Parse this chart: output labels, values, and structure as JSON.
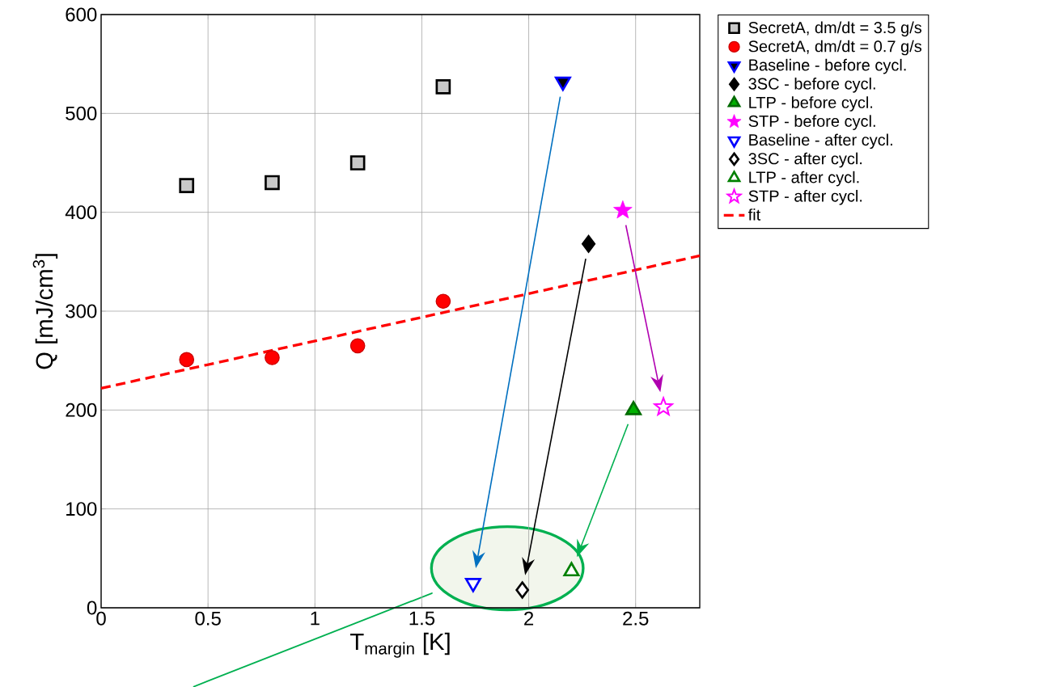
{
  "chart_data": {
    "type": "scatter",
    "xlabel": "T$_{margin}$ [K]",
    "ylabel": "Q [mJ/cm$^{3}$]",
    "xlim": [
      0,
      2.8
    ],
    "ylim": [
      0,
      600
    ],
    "xticks": [
      0,
      0.5,
      1,
      1.5,
      2,
      2.5
    ],
    "yticks": [
      0,
      100,
      200,
      300,
      400,
      500,
      600
    ],
    "grid": true,
    "legend": "top right",
    "series": [
      {
        "name": "SecretA, dm/dt = 3.5 g/s",
        "color": "#c8c8c8",
        "marker": "square",
        "x": [
          0.4,
          0.8,
          1.2,
          1.6
        ],
        "values": [
          427,
          430,
          450,
          527
        ]
      },
      {
        "name": "SecretA, dm/dt = 0.7 g/s",
        "color": "#ff0000",
        "marker": "circle",
        "x": [
          0.4,
          0.8,
          1.2,
          1.6
        ],
        "values": [
          251,
          253,
          265,
          310
        ]
      },
      {
        "name": "Baseline - before cycl.",
        "color": "#000000",
        "marker": "triangle-down-dark",
        "x": [
          2.16
        ],
        "values": [
          532
        ]
      },
      {
        "name": "3SC - before cycl.",
        "color": "#000000",
        "marker": "diamond",
        "x": [
          2.28
        ],
        "values": [
          368
        ]
      },
      {
        "name": "LTP - before cycl.",
        "color": "#00b000",
        "marker": "triangle",
        "x": [
          2.49
        ],
        "values": [
          200
        ]
      },
      {
        "name": "STP - before cycl.",
        "color": "#ff00ff",
        "marker": "star",
        "x": [
          2.44
        ],
        "values": [
          402
        ]
      },
      {
        "name": "Baseline - after cycl.",
        "color": "#0000ff",
        "marker": "triangle-down-open",
        "x": [
          1.74
        ],
        "values": [
          25
        ]
      },
      {
        "name": "3SC - after cycl.",
        "color": "#000000",
        "marker": "diamond-open",
        "x": [
          1.97
        ],
        "values": [
          18
        ]
      },
      {
        "name": "LTP - after cycl.",
        "color": "#008000",
        "marker": "triangle-open",
        "x": [
          2.2
        ],
        "values": [
          37
        ]
      },
      {
        "name": "STP - after cycl.",
        "color": "#ff00ff",
        "marker": "star-open",
        "x": [
          2.63
        ],
        "values": [
          203
        ]
      },
      {
        "name": "fit",
        "type": "line",
        "color": "#ff0000",
        "line_style": "dashed",
        "marker": "none",
        "x": [
          0,
          2.8
        ],
        "values": [
          222,
          356
        ]
      }
    ]
  }
}
